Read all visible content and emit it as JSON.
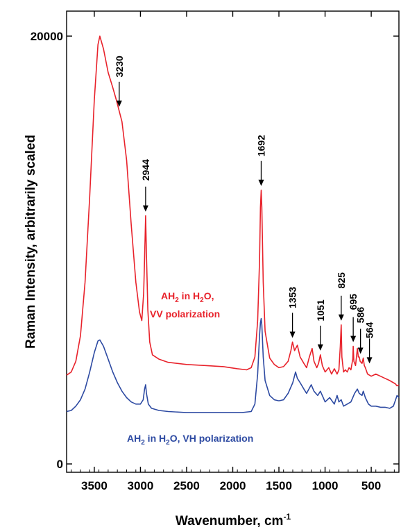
{
  "chart_data": {
    "type": "line",
    "xlabel": "Wavenumber, cm",
    "xlabel_sup": "-1",
    "ylabel": "Raman Intensity, arbitrarily  scaled",
    "xlim": [
      3800,
      200
    ],
    "ylim": [
      0,
      20000
    ],
    "x_ticks": [
      3500,
      3000,
      2500,
      2000,
      1500,
      1000,
      500
    ],
    "y_ticks": [
      0,
      20000
    ],
    "x_tick_labels": [
      "3500",
      "3000",
      "2500",
      "2000",
      "1500",
      "1000",
      "500"
    ],
    "y_tick_labels": [
      "0",
      "20000"
    ],
    "grid": false,
    "series": [
      {
        "key": "vv",
        "label_parts": [
          "AH",
          "2",
          " in H",
          "2",
          "O,"
        ],
        "label_line2": "VV polarization",
        "color": "#e8222b",
        "points": [
          [
            3800,
            4150
          ],
          [
            3750,
            4300
          ],
          [
            3700,
            4800
          ],
          [
            3650,
            6000
          ],
          [
            3600,
            8500
          ],
          [
            3550,
            12500
          ],
          [
            3500,
            17000
          ],
          [
            3460,
            19600
          ],
          [
            3440,
            20000
          ],
          [
            3400,
            19400
          ],
          [
            3350,
            18300
          ],
          [
            3300,
            17600
          ],
          [
            3260,
            17000
          ],
          [
            3230,
            16500
          ],
          [
            3200,
            16000
          ],
          [
            3150,
            14200
          ],
          [
            3100,
            11200
          ],
          [
            3050,
            8500
          ],
          [
            3010,
            7100
          ],
          [
            2985,
            6700
          ],
          [
            2965,
            8000
          ],
          [
            2950,
            10500
          ],
          [
            2944,
            11600
          ],
          [
            2935,
            9800
          ],
          [
            2920,
            7200
          ],
          [
            2900,
            5700
          ],
          [
            2870,
            5100
          ],
          [
            2800,
            4900
          ],
          [
            2700,
            4750
          ],
          [
            2500,
            4650
          ],
          [
            2300,
            4600
          ],
          [
            2100,
            4550
          ],
          [
            1950,
            4450
          ],
          [
            1850,
            4400
          ],
          [
            1800,
            4500
          ],
          [
            1760,
            5000
          ],
          [
            1730,
            6700
          ],
          [
            1710,
            9500
          ],
          [
            1700,
            12000
          ],
          [
            1692,
            12800
          ],
          [
            1685,
            12000
          ],
          [
            1670,
            8500
          ],
          [
            1650,
            6200
          ],
          [
            1600,
            4950
          ],
          [
            1550,
            4650
          ],
          [
            1500,
            4500
          ],
          [
            1450,
            4550
          ],
          [
            1400,
            4800
          ],
          [
            1370,
            5300
          ],
          [
            1353,
            5700
          ],
          [
            1330,
            5300
          ],
          [
            1300,
            5550
          ],
          [
            1270,
            5000
          ],
          [
            1230,
            4700
          ],
          [
            1200,
            4500
          ],
          [
            1170,
            5000
          ],
          [
            1140,
            5400
          ],
          [
            1120,
            4800
          ],
          [
            1090,
            4500
          ],
          [
            1070,
            4700
          ],
          [
            1051,
            5100
          ],
          [
            1030,
            4600
          ],
          [
            1000,
            4300
          ],
          [
            960,
            4500
          ],
          [
            930,
            4200
          ],
          [
            900,
            4450
          ],
          [
            870,
            4200
          ],
          [
            850,
            4400
          ],
          [
            835,
            5500
          ],
          [
            825,
            6500
          ],
          [
            818,
            5000
          ],
          [
            800,
            4300
          ],
          [
            780,
            4400
          ],
          [
            760,
            4300
          ],
          [
            740,
            4500
          ],
          [
            720,
            4400
          ],
          [
            700,
            4900
          ],
          [
            695,
            5500
          ],
          [
            688,
            4800
          ],
          [
            670,
            4600
          ],
          [
            650,
            5400
          ],
          [
            640,
            5000
          ],
          [
            630,
            5000
          ],
          [
            620,
            4800
          ],
          [
            600,
            4700
          ],
          [
            586,
            4950
          ],
          [
            575,
            4600
          ],
          [
            564,
            4500
          ],
          [
            540,
            4200
          ],
          [
            500,
            4100
          ],
          [
            450,
            4200
          ],
          [
            400,
            4100
          ],
          [
            350,
            4000
          ],
          [
            300,
            3900
          ],
          [
            260,
            3800
          ],
          [
            240,
            3750
          ],
          [
            220,
            3650
          ],
          [
            200,
            3700
          ]
        ]
      },
      {
        "key": "vh",
        "label_parts": [
          "AH",
          "2",
          " in H",
          "2",
          "O, VH polarization"
        ],
        "label_line2": "",
        "color": "#2d4aa2",
        "points": [
          [
            3800,
            2450
          ],
          [
            3750,
            2500
          ],
          [
            3700,
            2700
          ],
          [
            3650,
            3000
          ],
          [
            3600,
            3500
          ],
          [
            3550,
            4300
          ],
          [
            3500,
            5200
          ],
          [
            3460,
            5750
          ],
          [
            3440,
            5800
          ],
          [
            3400,
            5500
          ],
          [
            3350,
            4900
          ],
          [
            3300,
            4300
          ],
          [
            3250,
            3800
          ],
          [
            3200,
            3400
          ],
          [
            3150,
            3100
          ],
          [
            3100,
            2900
          ],
          [
            3050,
            2800
          ],
          [
            3000,
            2800
          ],
          [
            2970,
            3000
          ],
          [
            2955,
            3500
          ],
          [
            2944,
            3700
          ],
          [
            2935,
            3300
          ],
          [
            2915,
            2800
          ],
          [
            2880,
            2600
          ],
          [
            2800,
            2500
          ],
          [
            2700,
            2450
          ],
          [
            2500,
            2400
          ],
          [
            2300,
            2400
          ],
          [
            2100,
            2400
          ],
          [
            1900,
            2400
          ],
          [
            1800,
            2450
          ],
          [
            1760,
            2800
          ],
          [
            1730,
            4200
          ],
          [
            1710,
            6000
          ],
          [
            1700,
            6600
          ],
          [
            1692,
            6800
          ],
          [
            1685,
            6500
          ],
          [
            1670,
            5000
          ],
          [
            1650,
            3900
          ],
          [
            1600,
            3200
          ],
          [
            1550,
            3000
          ],
          [
            1500,
            2950
          ],
          [
            1450,
            3000
          ],
          [
            1400,
            3300
          ],
          [
            1350,
            3800
          ],
          [
            1320,
            4300
          ],
          [
            1300,
            4000
          ],
          [
            1270,
            3800
          ],
          [
            1230,
            3500
          ],
          [
            1200,
            3300
          ],
          [
            1150,
            3700
          ],
          [
            1120,
            3400
          ],
          [
            1080,
            3200
          ],
          [
            1051,
            3400
          ],
          [
            1020,
            3100
          ],
          [
            1000,
            2900
          ],
          [
            950,
            3100
          ],
          [
            900,
            2800
          ],
          [
            870,
            3200
          ],
          [
            850,
            2900
          ],
          [
            825,
            3000
          ],
          [
            800,
            2700
          ],
          [
            760,
            2800
          ],
          [
            720,
            2900
          ],
          [
            700,
            3100
          ],
          [
            680,
            3300
          ],
          [
            650,
            3500
          ],
          [
            630,
            3300
          ],
          [
            600,
            3200
          ],
          [
            586,
            3400
          ],
          [
            564,
            3100
          ],
          [
            530,
            2800
          ],
          [
            500,
            2700
          ],
          [
            450,
            2700
          ],
          [
            400,
            2650
          ],
          [
            350,
            2650
          ],
          [
            300,
            2600
          ],
          [
            260,
            2700
          ],
          [
            240,
            2950
          ],
          [
            220,
            3200
          ],
          [
            200,
            3100
          ]
        ]
      }
    ],
    "annotations": [
      {
        "text": "3230",
        "x": 3230,
        "y": 16500
      },
      {
        "text": "2944",
        "x": 2944,
        "y": 11600
      },
      {
        "text": "1692",
        "x": 1692,
        "y": 12800
      },
      {
        "text": "1353",
        "x": 1353,
        "y": 5700
      },
      {
        "text": "1051",
        "x": 1051,
        "y": 5100
      },
      {
        "text": "825",
        "x": 825,
        "y": 6500
      },
      {
        "text": "695",
        "x": 695,
        "y": 5500
      },
      {
        "text": "586",
        "x": 586,
        "y": 4950
      },
      {
        "text": "564",
        "x": 564,
        "y": 4500
      }
    ]
  }
}
